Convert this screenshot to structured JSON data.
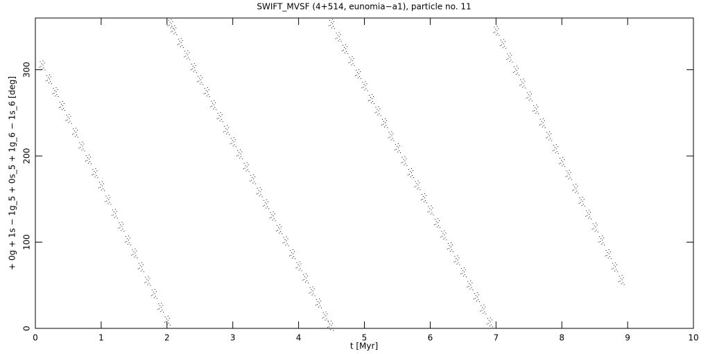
{
  "chart_data": {
    "type": "scatter",
    "title": "SWIFT_MVSF (4+514, eunomia−a1), particle no. 11",
    "xlabel": "t [Myr]",
    "ylabel": "+ 0g + 1s − 1g_5 + 0s_5 + 1g_6 − 1s_6 [deg]",
    "color": "#000000",
    "xlim": [
      0,
      10
    ],
    "xticks": [
      0,
      1,
      2,
      3,
      4,
      5,
      6,
      7,
      8,
      9,
      10
    ],
    "ylim": [
      0,
      360
    ],
    "yticks": [
      0,
      100,
      200,
      300
    ],
    "x": [
      0.1,
      0.2,
      0.3,
      0.4,
      0.5,
      0.6,
      0.7,
      0.8,
      0.9,
      1.0,
      1.1,
      1.2,
      1.3,
      1.4,
      1.5,
      1.6,
      1.7,
      1.8,
      1.9,
      2.0,
      2.05,
      2.1,
      2.2,
      2.3,
      2.4,
      2.5,
      2.6,
      2.7,
      2.8,
      2.9,
      3.0,
      3.1,
      3.2,
      3.3,
      3.4,
      3.5,
      3.6,
      3.7,
      3.8,
      3.9,
      4.0,
      4.1,
      4.2,
      4.3,
      4.4,
      4.48,
      4.5,
      4.6,
      4.7,
      4.8,
      4.9,
      5.0,
      5.1,
      5.2,
      5.3,
      5.4,
      5.5,
      5.6,
      5.7,
      5.8,
      5.9,
      6.0,
      6.1,
      6.2,
      6.3,
      6.4,
      6.5,
      6.6,
      6.7,
      6.8,
      6.9,
      7.0,
      7.1,
      7.2,
      7.3,
      7.4,
      7.5,
      7.6,
      7.7,
      7.8,
      7.9,
      8.0,
      8.1,
      8.2,
      8.3,
      8.4,
      8.5,
      8.6,
      8.7,
      8.8,
      8.9
    ],
    "values": [
      305,
      289,
      274,
      258,
      243,
      227,
      211,
      196,
      180,
      165,
      149,
      133,
      118,
      102,
      87,
      71,
      55,
      40,
      24,
      9,
      353,
      346,
      331,
      317,
      302,
      288,
      274,
      259,
      245,
      230,
      216,
      202,
      187,
      173,
      158,
      144,
      130,
      115,
      101,
      86,
      72,
      58,
      43,
      29,
      14,
      3,
      353,
      338,
      324,
      310,
      295,
      281,
      266,
      252,
      238,
      223,
      209,
      194,
      180,
      166,
      151,
      137,
      122,
      108,
      94,
      79,
      65,
      50,
      36,
      22,
      7,
      345,
      330,
      314,
      299,
      284,
      269,
      254,
      238,
      223,
      208,
      193,
      178,
      162,
      147,
      132,
      117,
      102,
      86,
      71,
      56
    ]
  }
}
